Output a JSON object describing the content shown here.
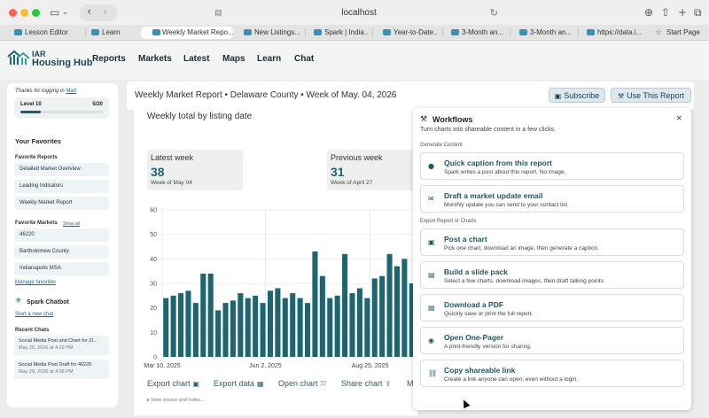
{
  "browser": {
    "url": "localhost",
    "tabs": [
      {
        "label": "Lesson Editor"
      },
      {
        "label": "Learn"
      },
      {
        "label": "Weekly Market Repo..."
      },
      {
        "label": "New Listings..."
      },
      {
        "label": "Spark | India..."
      },
      {
        "label": "Year-to-Date..."
      },
      {
        "label": "3-Month an..."
      },
      {
        "label": "3-Month an..."
      },
      {
        "label": "https://data.i..."
      },
      {
        "label": "Start Page"
      }
    ]
  },
  "app": {
    "logo_line1": "IAR",
    "logo_line2": "Housing Hub",
    "nav": [
      "Reports",
      "Markets",
      "Latest",
      "Maps",
      "Learn",
      "Chat"
    ]
  },
  "sidebar": {
    "thanks": "Thanks for logging in",
    "user": "Matt",
    "level_label": "Level 10",
    "level_progress": "5/20",
    "level_fraction": 0.25,
    "favorites_heading": "Your Favorites",
    "favorite_reports_heading": "Favorite Reports",
    "favorite_reports": [
      "Detailed Market Overview",
      "Leading Indicators",
      "Weekly Market Report"
    ],
    "favorite_markets_heading": "Favorite Markets",
    "show_all": "Show all",
    "favorite_markets": [
      "46220",
      "Bartholomew County",
      "Indianapolis MSA"
    ],
    "manage_favorites": "Manage favorites",
    "chatbot_heading": "Spark Chatbot",
    "start_chat": "Start a new chat",
    "recent_chats_heading": "Recent Chats",
    "recent_chats": [
      {
        "title": "Social Media Post and Chart for ZI...",
        "date": "May 20, 2026 at 4:29 PM"
      },
      {
        "title": "Social Media Post Draft for 46220",
        "date": "May 20, 2026 at 4:08 PM"
      }
    ]
  },
  "report": {
    "title": "Weekly Market Report • Delaware County • Week of May. 04, 2026",
    "subscribe_label": "Subscribe",
    "use_report_label": "Use This Report",
    "section_title": "Weekly total by listing date",
    "stats": [
      {
        "label": "Latest week",
        "value": "38",
        "week": "Week of May 04"
      },
      {
        "label": "Previous week",
        "value": "31",
        "week": "Week of April 27"
      }
    ],
    "actions": [
      "Export chart",
      "Export data",
      "Open chart",
      "Share chart",
      "M"
    ],
    "view_source": "View source and notes..."
  },
  "chart_data": {
    "type": "bar",
    "color": "#1d6670",
    "yticks": [
      0,
      10,
      20,
      30,
      40,
      50,
      60
    ],
    "ylim": [
      0,
      60
    ],
    "xtick_labels": [
      "Mar 10, 2025",
      "Jun 2, 2025",
      "Aug 25, 2025"
    ],
    "values": [
      24,
      25,
      26,
      27,
      22,
      34,
      34,
      19,
      22,
      23,
      26,
      24,
      25,
      22,
      27,
      28,
      24,
      26,
      24,
      22,
      43,
      33,
      24,
      25,
      42,
      26,
      28,
      24,
      32,
      33,
      42,
      37,
      40,
      30
    ]
  },
  "workflows": {
    "title": "Workflows",
    "subtitle": "Turn charts into shareable content in a few clicks.",
    "section_generate": "Generate Content",
    "section_export": "Export Report or Charts",
    "cards": [
      {
        "icon": "chat-bubble-icon",
        "glyph": "💬",
        "title": "Quick caption from this report",
        "desc": "Spark writes a post about this report. No image."
      },
      {
        "icon": "mail-icon",
        "glyph": "✉",
        "title": "Draft a market update email",
        "desc": "Monthly update you can send to your contact list."
      },
      {
        "icon": "image-icon",
        "glyph": "▣",
        "title": "Post a chart",
        "desc": "Pick one chart, download an image, then generate a caption."
      },
      {
        "icon": "document-icon",
        "glyph": "▤",
        "title": "Build a slide pack",
        "desc": "Select a few charts, download images, then draft talking points."
      },
      {
        "icon": "pdf-icon",
        "glyph": "▤",
        "title": "Download a PDF",
        "desc": "Quickly save or print the full report."
      },
      {
        "icon": "eye-icon",
        "glyph": "◉",
        "title": "Open One-Pager",
        "desc": "A print-friendly version for sharing."
      },
      {
        "icon": "link-icon",
        "glyph": "⛓",
        "title": "Copy shareable link",
        "desc": "Create a link anyone can open, even without a login."
      }
    ]
  }
}
